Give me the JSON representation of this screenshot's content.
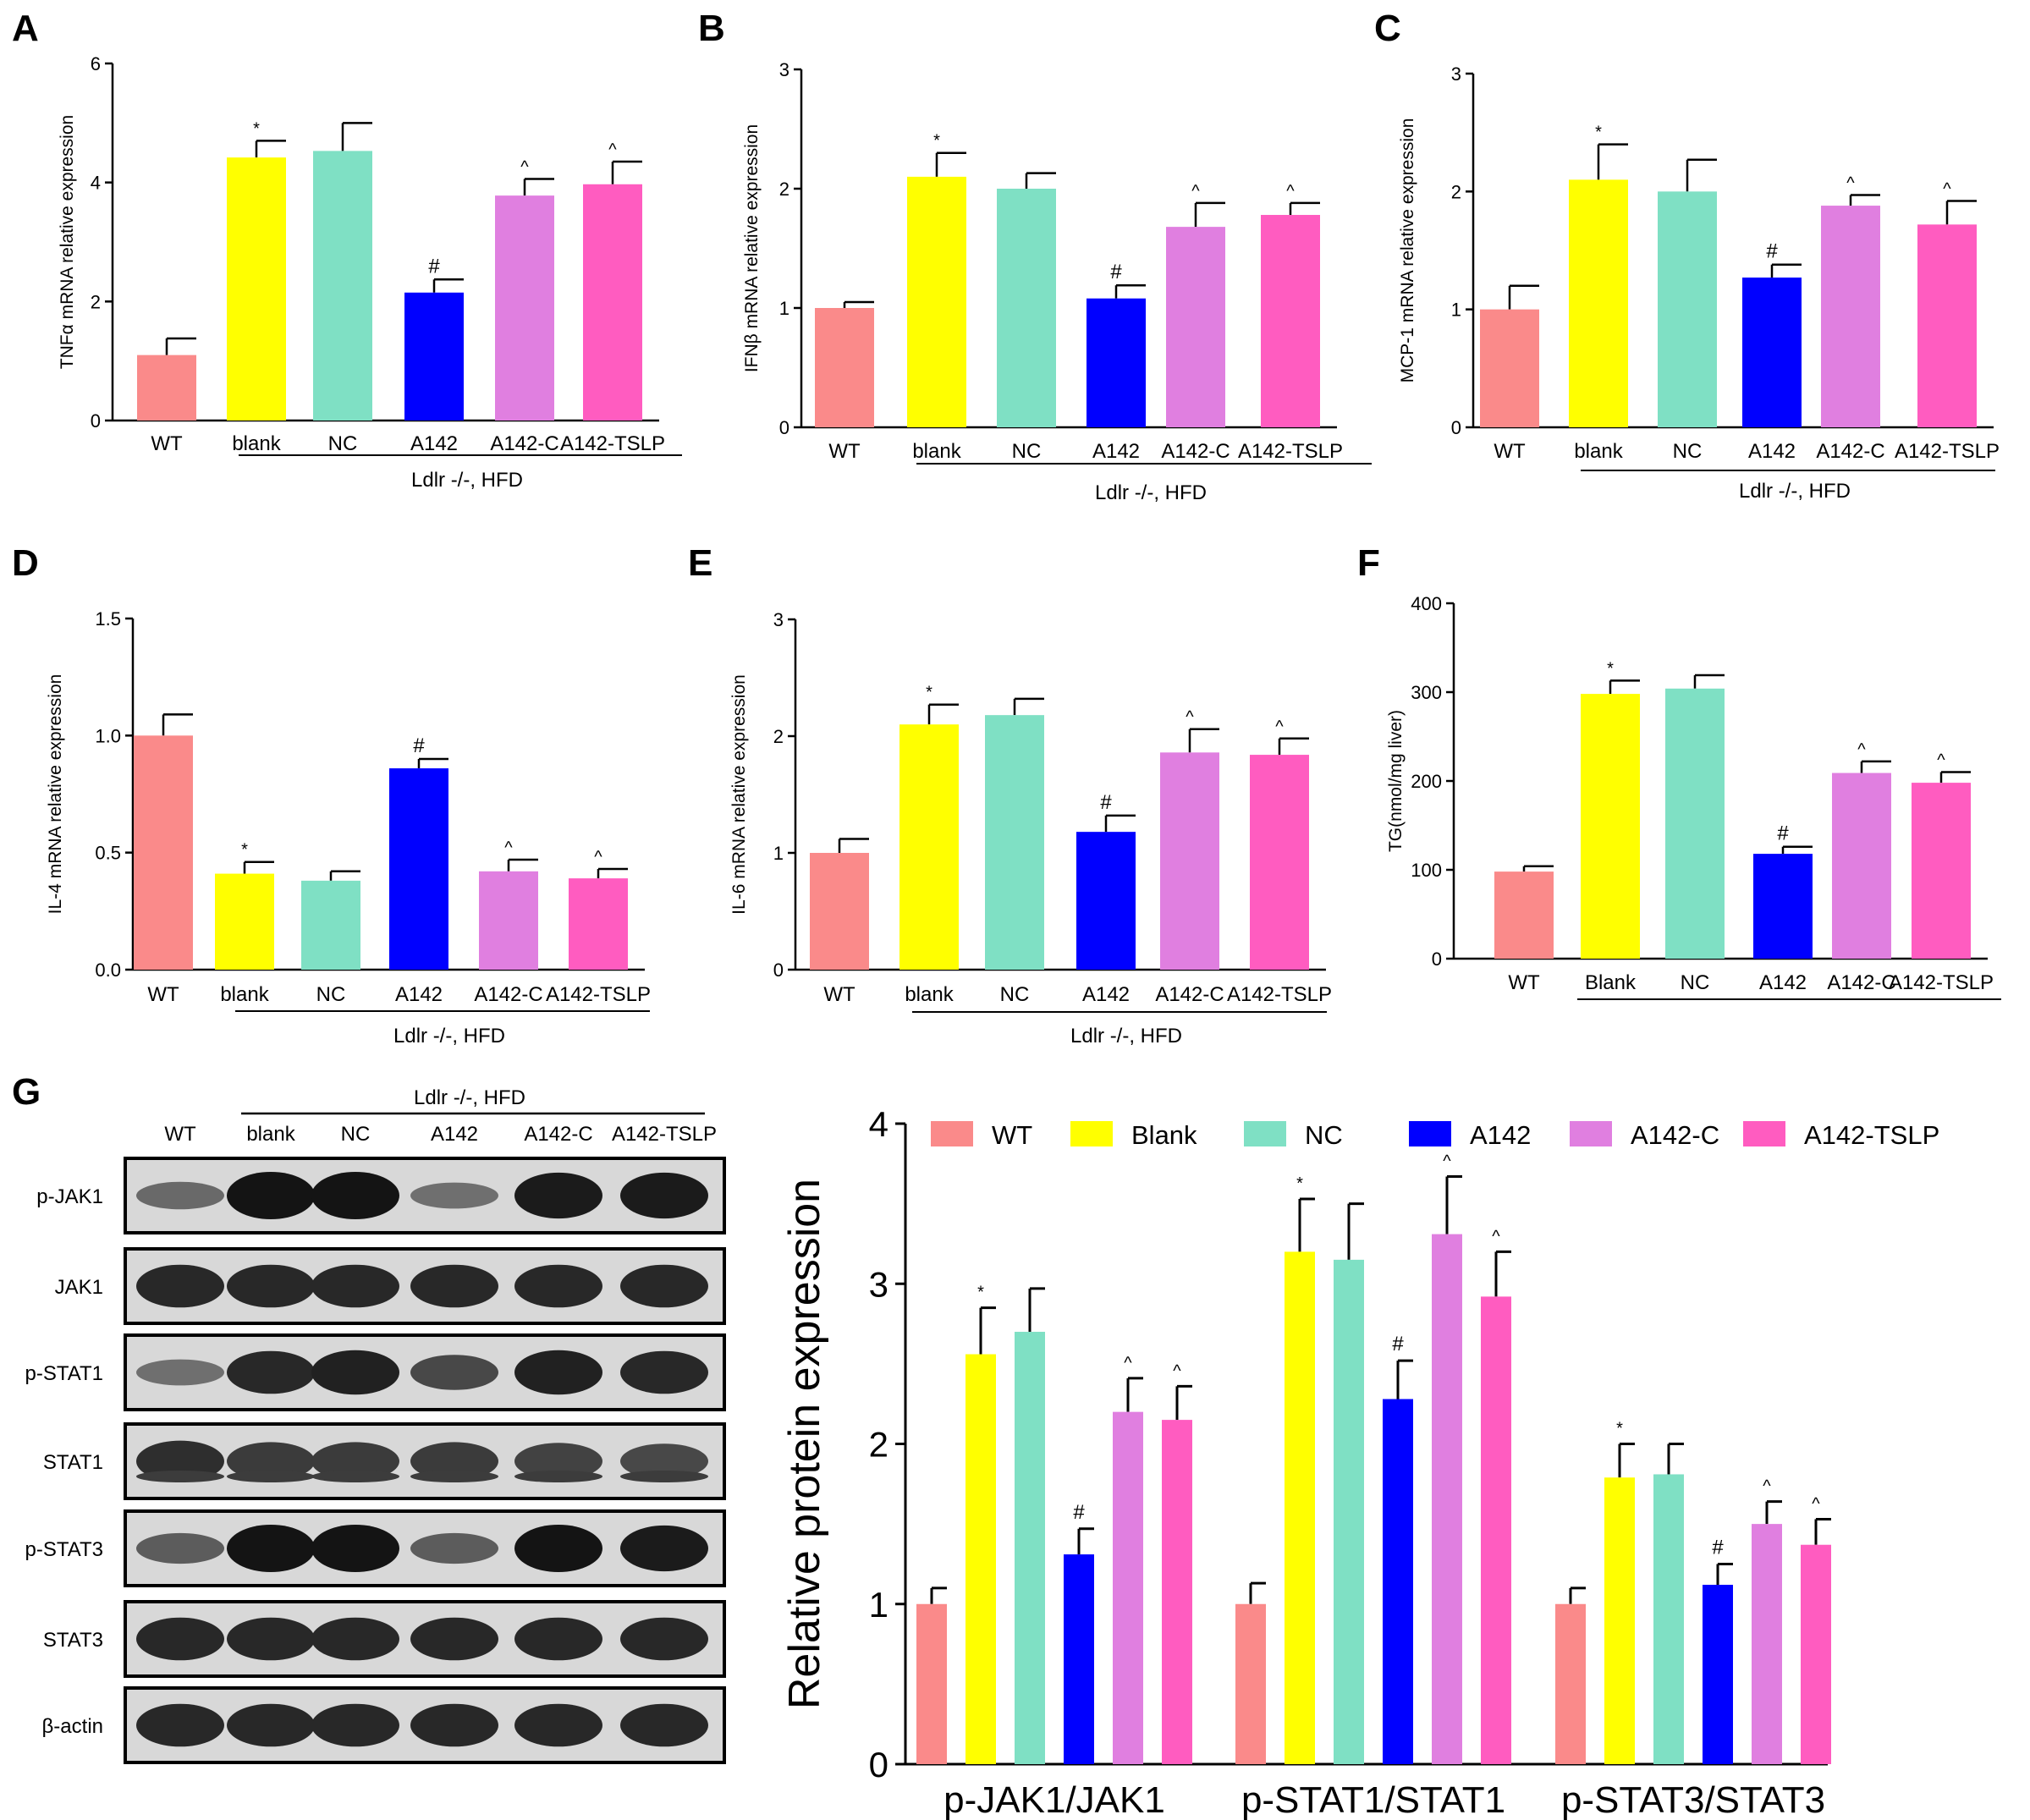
{
  "colors": {
    "WT": "#FA8A8A",
    "blank": "#FFFF00",
    "NC": "#7FE0C4",
    "A142": "#0000FF",
    "A142-C": "#E07FE0",
    "A142-TSLP": "#FF5CC0"
  },
  "chart_data": [
    {
      "panel": "A",
      "type": "bar",
      "categories": [
        "WT",
        "blank",
        "NC",
        "A142",
        "A142-C",
        "A142-TSLP"
      ],
      "values": [
        1.1,
        4.42,
        4.53,
        2.15,
        3.78,
        3.97
      ],
      "errors": [
        0.28,
        0.28,
        0.47,
        0.22,
        0.28,
        0.38
      ],
      "marks": [
        "",
        "*",
        "",
        "#",
        "^",
        "^"
      ],
      "ylabel": "TNFα mRNA relative expression",
      "ylim": [
        0,
        6
      ],
      "yticks": [
        "0",
        "2",
        "4",
        "6"
      ],
      "group_label": "Ldlr -/-, HFD"
    },
    {
      "panel": "B",
      "type": "bar",
      "categories": [
        "WT",
        "blank",
        "NC",
        "A142",
        "A142-C",
        "A142-TSLP"
      ],
      "values": [
        1.0,
        2.1,
        2.0,
        1.08,
        1.68,
        1.78
      ],
      "errors": [
        0.05,
        0.2,
        0.13,
        0.11,
        0.2,
        0.1
      ],
      "marks": [
        "",
        "*",
        "",
        "#",
        "^",
        "^"
      ],
      "ylabel": "IFNβ mRNA relative expression",
      "ylim": [
        0,
        3
      ],
      "yticks": [
        "0",
        "1",
        "2",
        "3"
      ],
      "group_label": "Ldlr -/-, HFD"
    },
    {
      "panel": "C",
      "type": "bar",
      "categories": [
        "WT",
        "blank",
        "NC",
        "A142",
        "A142-C",
        "A142-TSLP"
      ],
      "values": [
        1.0,
        2.1,
        2.0,
        1.27,
        1.88,
        1.72
      ],
      "errors": [
        0.2,
        0.3,
        0.27,
        0.11,
        0.09,
        0.2
      ],
      "marks": [
        "",
        "*",
        "",
        "#",
        "^",
        "^"
      ],
      "ylabel": "MCP-1 mRNA relative expression",
      "ylim": [
        0,
        3
      ],
      "yticks": [
        "0",
        "1",
        "2",
        "3"
      ],
      "group_label": "Ldlr -/-, HFD"
    },
    {
      "panel": "D",
      "type": "bar",
      "categories": [
        "WT",
        "blank",
        "NC",
        "A142",
        "A142-C",
        "A142-TSLP"
      ],
      "values": [
        1.0,
        0.41,
        0.38,
        0.86,
        0.42,
        0.39
      ],
      "errors": [
        0.09,
        0.05,
        0.04,
        0.04,
        0.05,
        0.04
      ],
      "marks": [
        "",
        "*",
        "",
        "#",
        "^",
        "^"
      ],
      "ylabel": "IL-4 mRNA relative expression",
      "ylim": [
        0,
        1.5
      ],
      "yticks": [
        "0.0",
        "0.5",
        "1.0",
        "1.5"
      ],
      "group_label": "Ldlr -/-, HFD"
    },
    {
      "panel": "E",
      "type": "bar",
      "categories": [
        "WT",
        "blank",
        "NC",
        "A142",
        "A142-C",
        "A142-TSLP"
      ],
      "values": [
        1.0,
        2.1,
        2.18,
        1.18,
        1.86,
        1.84
      ],
      "errors": [
        0.12,
        0.17,
        0.14,
        0.14,
        0.2,
        0.14
      ],
      "marks": [
        "",
        "*",
        "",
        "#",
        "^",
        "^"
      ],
      "ylabel": "IL-6 mRNA relative expression",
      "ylim": [
        0,
        3
      ],
      "yticks": [
        "0",
        "1",
        "2",
        "3"
      ],
      "group_label": "Ldlr -/-, HFD"
    },
    {
      "panel": "F",
      "type": "bar",
      "categories": [
        "WT",
        "Blank",
        "NC",
        "A142",
        "A142-C",
        "A142-TSLP"
      ],
      "values": [
        98,
        298,
        304,
        118,
        209,
        198
      ],
      "errors": [
        6,
        15,
        15,
        8,
        13,
        12
      ],
      "marks": [
        "",
        "*",
        "",
        "#",
        "^",
        "^"
      ],
      "ylabel": "TG(nmol/mg liver)",
      "ylim": [
        0,
        400
      ],
      "yticks": [
        "0",
        "100",
        "200",
        "300",
        "400"
      ],
      "group_label": ""
    },
    {
      "panel": "G",
      "type": "bar",
      "categories": [
        "p-JAK1/JAK1",
        "p-STAT1/STAT1",
        "p-STAT3/STAT3"
      ],
      "series": [
        {
          "name": "WT",
          "values": [
            1.0,
            1.0,
            1.0
          ],
          "errors": [
            0.1,
            0.13,
            0.1
          ],
          "marks": [
            "",
            "",
            ""
          ]
        },
        {
          "name": "Blank",
          "values": [
            2.56,
            3.2,
            1.79
          ],
          "errors": [
            0.29,
            0.33,
            0.21
          ],
          "marks": [
            "*",
            "*",
            "*"
          ]
        },
        {
          "name": "NC",
          "values": [
            2.7,
            3.15,
            1.81
          ],
          "errors": [
            0.27,
            0.35,
            0.19
          ],
          "marks": [
            "",
            "",
            ""
          ]
        },
        {
          "name": "A142",
          "values": [
            1.31,
            2.28,
            1.12
          ],
          "errors": [
            0.16,
            0.24,
            0.13
          ],
          "marks": [
            "#",
            "#",
            "#"
          ]
        },
        {
          "name": "A142-C",
          "values": [
            2.2,
            3.31,
            1.5
          ],
          "errors": [
            0.21,
            0.36,
            0.14
          ],
          "marks": [
            "^",
            "^",
            "^"
          ]
        },
        {
          "name": "A142-TSLP",
          "values": [
            2.15,
            2.92,
            1.37
          ],
          "errors": [
            0.21,
            0.28,
            0.16
          ],
          "marks": [
            "^",
            "^",
            "^"
          ]
        }
      ],
      "ylabel": "Relative protein expression",
      "ylim": [
        0,
        4
      ],
      "yticks": [
        "0",
        "1",
        "2",
        "3",
        "4"
      ],
      "legend": "top"
    }
  ],
  "blot": {
    "panel": "G",
    "group_label": "Ldlr -/-, HFD",
    "lanes": [
      "WT",
      "blank",
      "NC",
      "A142",
      "A142-C",
      "A142-TSLP"
    ],
    "rows": [
      {
        "label": "p-JAK1",
        "intensity": [
          0.35,
          1.0,
          1.0,
          0.3,
          0.95,
          0.95
        ]
      },
      {
        "label": "JAK1",
        "intensity": [
          0.85,
          0.85,
          0.85,
          0.85,
          0.85,
          0.85
        ]
      },
      {
        "label": "p-STAT1",
        "intensity": [
          0.3,
          0.85,
          0.9,
          0.6,
          0.9,
          0.85
        ]
      },
      {
        "label": "STAT1",
        "intensity": [
          0.8,
          0.7,
          0.7,
          0.7,
          0.65,
          0.6
        ]
      },
      {
        "label": "p-STAT3",
        "intensity": [
          0.45,
          1.0,
          1.0,
          0.45,
          1.0,
          0.95
        ]
      },
      {
        "label": "STAT3",
        "intensity": [
          0.85,
          0.85,
          0.85,
          0.85,
          0.85,
          0.85
        ]
      },
      {
        "label": "β-actin",
        "intensity": [
          0.85,
          0.85,
          0.85,
          0.85,
          0.85,
          0.85
        ]
      }
    ]
  }
}
